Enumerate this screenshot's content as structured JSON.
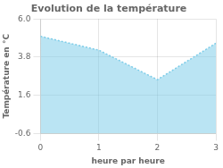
{
  "chart_data": {
    "type": "area",
    "title": "Evolution de la température",
    "xlabel": "heure par heure",
    "ylabel": "Température en °C",
    "x": [
      0,
      1,
      2,
      3
    ],
    "series": [
      {
        "values": [
          5.0,
          4.2,
          2.5,
          4.6
        ],
        "color": "#7dcce8",
        "line_style": "dotted"
      }
    ],
    "xlim": [
      0,
      3
    ],
    "xticks": [
      0,
      1,
      2,
      3
    ],
    "ylim": [
      -0.6,
      6.0
    ],
    "yticks": [
      -0.6,
      1.6,
      3.8,
      {
        "value": 6.0,
        "label": "6.0"
      }
    ],
    "grid": true
  }
}
